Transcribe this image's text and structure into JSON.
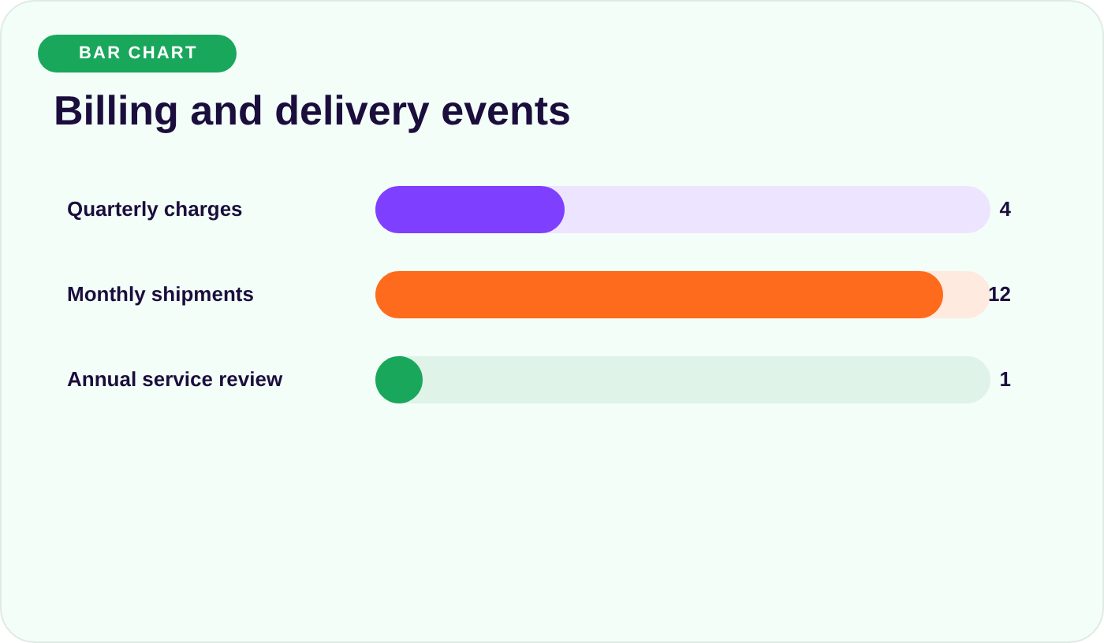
{
  "chart_data": {
    "type": "bar",
    "title": "Billing and delivery events",
    "annotations": [
      "BAR CHART"
    ],
    "orientation": "horizontal",
    "categories": [
      "Quarterly charges",
      "Monthly shipments",
      "Annual service review"
    ],
    "values": [
      4,
      12,
      1
    ],
    "colors": [
      "#7f3fff",
      "#ff6b1c",
      "#19a75c"
    ],
    "xlim": [
      0,
      13
    ],
    "tick_labels": "y",
    "data_labels": true
  }
}
